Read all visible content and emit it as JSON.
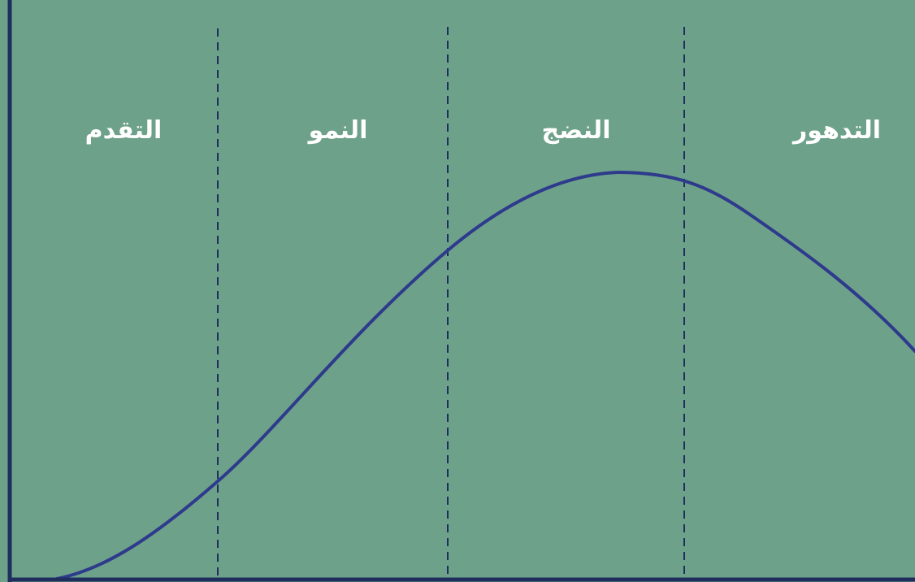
{
  "stages": [
    {
      "id": "introduction",
      "label": "التقدم"
    },
    {
      "id": "growth",
      "label": "النمو"
    },
    {
      "id": "maturity",
      "label": "النضج"
    },
    {
      "id": "decline",
      "label": "التدهور"
    }
  ],
  "colors": {
    "background": "#6da189",
    "axis": "#1f2e5e",
    "curve": "#2e3a8c",
    "divider": "#1f2e5e",
    "label": "#ffffff"
  }
}
